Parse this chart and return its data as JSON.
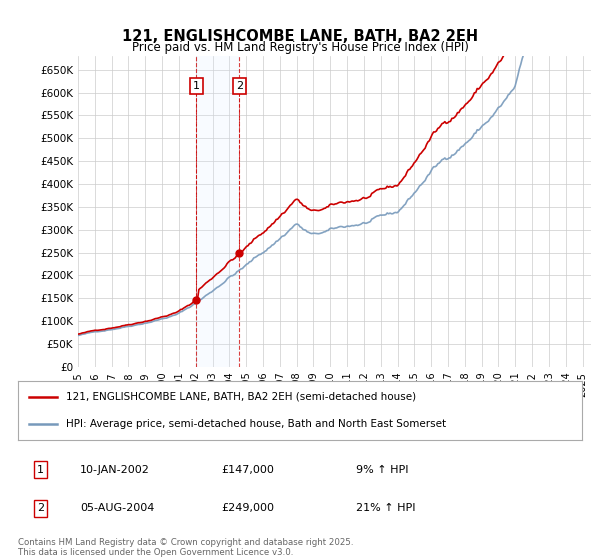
{
  "title": "121, ENGLISHCOMBE LANE, BATH, BA2 2EH",
  "subtitle": "Price paid vs. HM Land Registry's House Price Index (HPI)",
  "yticks": [
    0,
    50000,
    100000,
    150000,
    200000,
    250000,
    300000,
    350000,
    400000,
    450000,
    500000,
    550000,
    600000,
    650000
  ],
  "ytick_labels": [
    "£0",
    "£50K",
    "£100K",
    "£150K",
    "£200K",
    "£250K",
    "£300K",
    "£350K",
    "£400K",
    "£450K",
    "£500K",
    "£550K",
    "£600K",
    "£650K"
  ],
  "sale1_date": 2002.03,
  "sale1_price": 147000,
  "sale2_date": 2004.59,
  "sale2_price": 249000,
  "legend_line1": "121, ENGLISHCOMBE LANE, BATH, BA2 2EH (semi-detached house)",
  "legend_line2": "HPI: Average price, semi-detached house, Bath and North East Somerset",
  "table_row1_num": "1",
  "table_row1_date": "10-JAN-2002",
  "table_row1_price": "£147,000",
  "table_row1_hpi": "9% ↑ HPI",
  "table_row2_num": "2",
  "table_row2_date": "05-AUG-2004",
  "table_row2_price": "£249,000",
  "table_row2_hpi": "21% ↑ HPI",
  "footer": "Contains HM Land Registry data © Crown copyright and database right 2025.\nThis data is licensed under the Open Government Licence v3.0.",
  "red_color": "#cc0000",
  "blue_color": "#7799bb",
  "shade_color": "#ddeeff",
  "grid_color": "#cccccc",
  "bg_color": "#ffffff"
}
